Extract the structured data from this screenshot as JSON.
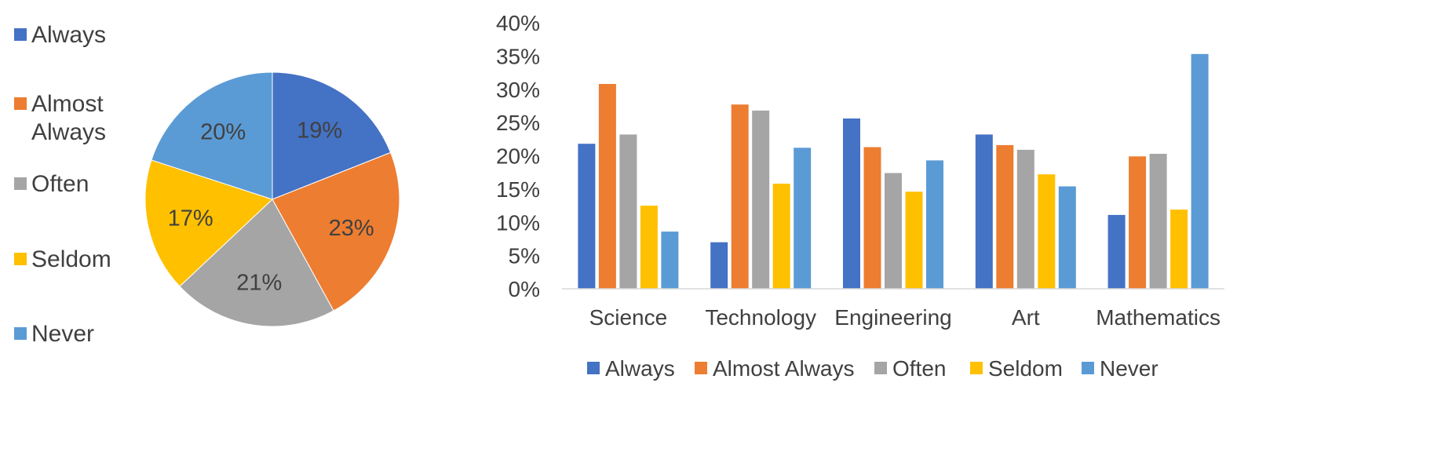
{
  "chart_data": [
    {
      "type": "pie",
      "labels": [
        "Always",
        "Almost Always",
        "Often",
        "Seldom",
        "Never"
      ],
      "legend_lines": [
        [
          "Always"
        ],
        [
          "Almost",
          "Always"
        ],
        [
          "Often"
        ],
        [
          "Seldom"
        ],
        [
          "Never"
        ]
      ],
      "values": [
        19,
        23,
        21,
        17,
        20
      ],
      "value_labels": [
        "19%",
        "23%",
        "21%",
        "17%",
        "20%"
      ],
      "colors": [
        "#4472C4",
        "#ED7D31",
        "#A5A5A5",
        "#FFC000",
        "#5B9BD5"
      ],
      "legend_position": "left",
      "start_angle": "12 o'clock, clockwise"
    },
    {
      "type": "bar",
      "categories": [
        "Science",
        "Technology",
        "Engineering",
        "Art",
        "Mathematics"
      ],
      "series": [
        {
          "name": "Always",
          "color": "#4472C4",
          "values": [
            21.8,
            7.0,
            25.6,
            23.2,
            11.1
          ]
        },
        {
          "name": "Almost Always",
          "color": "#ED7D31",
          "values": [
            30.8,
            27.7,
            21.3,
            21.6,
            19.9
          ]
        },
        {
          "name": "Often",
          "color": "#A5A5A5",
          "values": [
            23.2,
            26.8,
            17.4,
            20.9,
            20.3
          ]
        },
        {
          "name": "Seldom",
          "color": "#FFC000",
          "values": [
            12.5,
            15.8,
            14.6,
            17.2,
            11.9
          ]
        },
        {
          "name": "Never",
          "color": "#5B9BD5",
          "values": [
            8.6,
            21.2,
            19.3,
            15.4,
            35.3
          ]
        }
      ],
      "ylim": [
        0,
        40
      ],
      "yticks": [
        0,
        5,
        10,
        15,
        20,
        25,
        30,
        35,
        40
      ],
      "ytick_format": "{v}%",
      "grid": false,
      "legend_position": "bottom"
    }
  ]
}
